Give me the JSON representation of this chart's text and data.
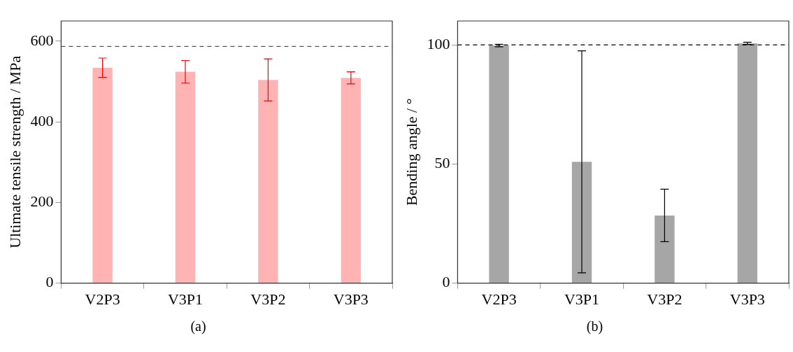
{
  "chart_data": [
    {
      "type": "bar",
      "ylabel": "Ultimate tensile strength / MPa",
      "categories": [
        "V2P3",
        "V3P1",
        "V3P2",
        "V3P3"
      ],
      "series": [
        {
          "color": "#ffb3b3",
          "values": [
            534,
            524,
            504,
            509
          ],
          "errors": [
            24,
            28,
            52,
            15
          ]
        }
      ],
      "ylim": [
        0,
        650
      ],
      "yticks": [
        0,
        200,
        400,
        600
      ],
      "grid": false,
      "legend": false,
      "ref_lines": [
        {
          "axis": "y",
          "value": 587,
          "color": "#555555",
          "line_style": "dashed"
        }
      ],
      "annotations": [
        "(a)"
      ]
    },
    {
      "type": "bar",
      "ylabel": "Bending angle / °",
      "categories": [
        "V2P3",
        "V3P1",
        "V3P2",
        "V3P3"
      ],
      "series": [
        {
          "color": "#a6a6a6",
          "values": [
            99.7,
            50.9,
            28.4,
            100.6
          ],
          "errors": [
            0.5,
            46.6,
            11,
            0.5
          ]
        }
      ],
      "ylim": [
        0,
        110
      ],
      "yticks": [
        0,
        50,
        100
      ],
      "grid": false,
      "legend": false,
      "ref_lines": [
        {
          "axis": "y",
          "value": 100,
          "color": "#000000",
          "line_style": "dashed"
        }
      ],
      "annotations": [
        "(b)"
      ]
    }
  ]
}
